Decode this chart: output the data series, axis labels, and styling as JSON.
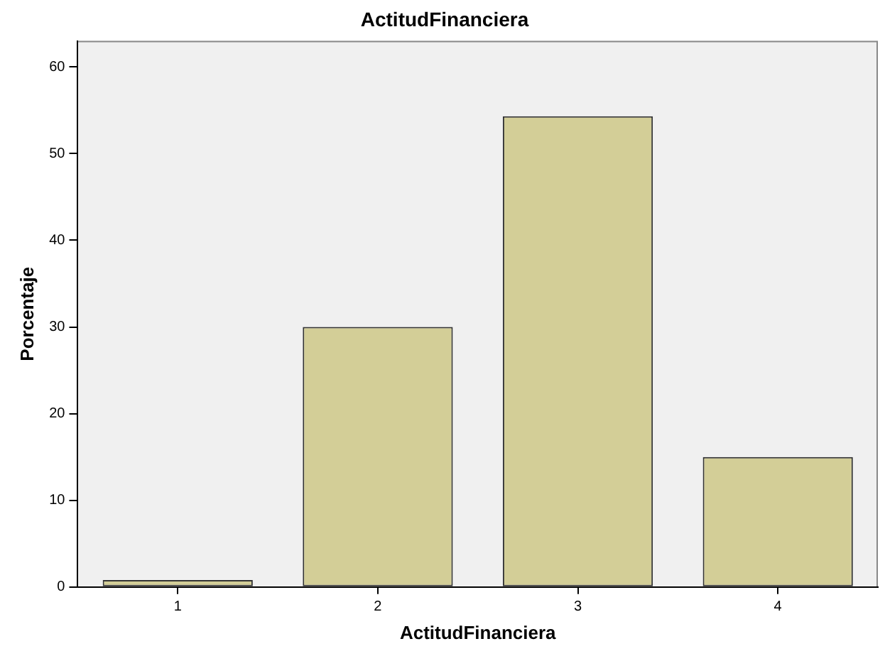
{
  "chart_data": {
    "type": "bar",
    "title": "ActitudFinanciera",
    "xlabel": "ActitudFinanciera",
    "ylabel": "Porcentaje",
    "categories": [
      "1",
      "2",
      "3",
      "4"
    ],
    "values": [
      0.8,
      30,
      54.3,
      15
    ],
    "color": "#d3ce97",
    "ylim": [
      0,
      63
    ],
    "yticks": [
      0,
      10,
      20,
      30,
      40,
      50,
      60
    ],
    "grid": false,
    "legend": false
  }
}
